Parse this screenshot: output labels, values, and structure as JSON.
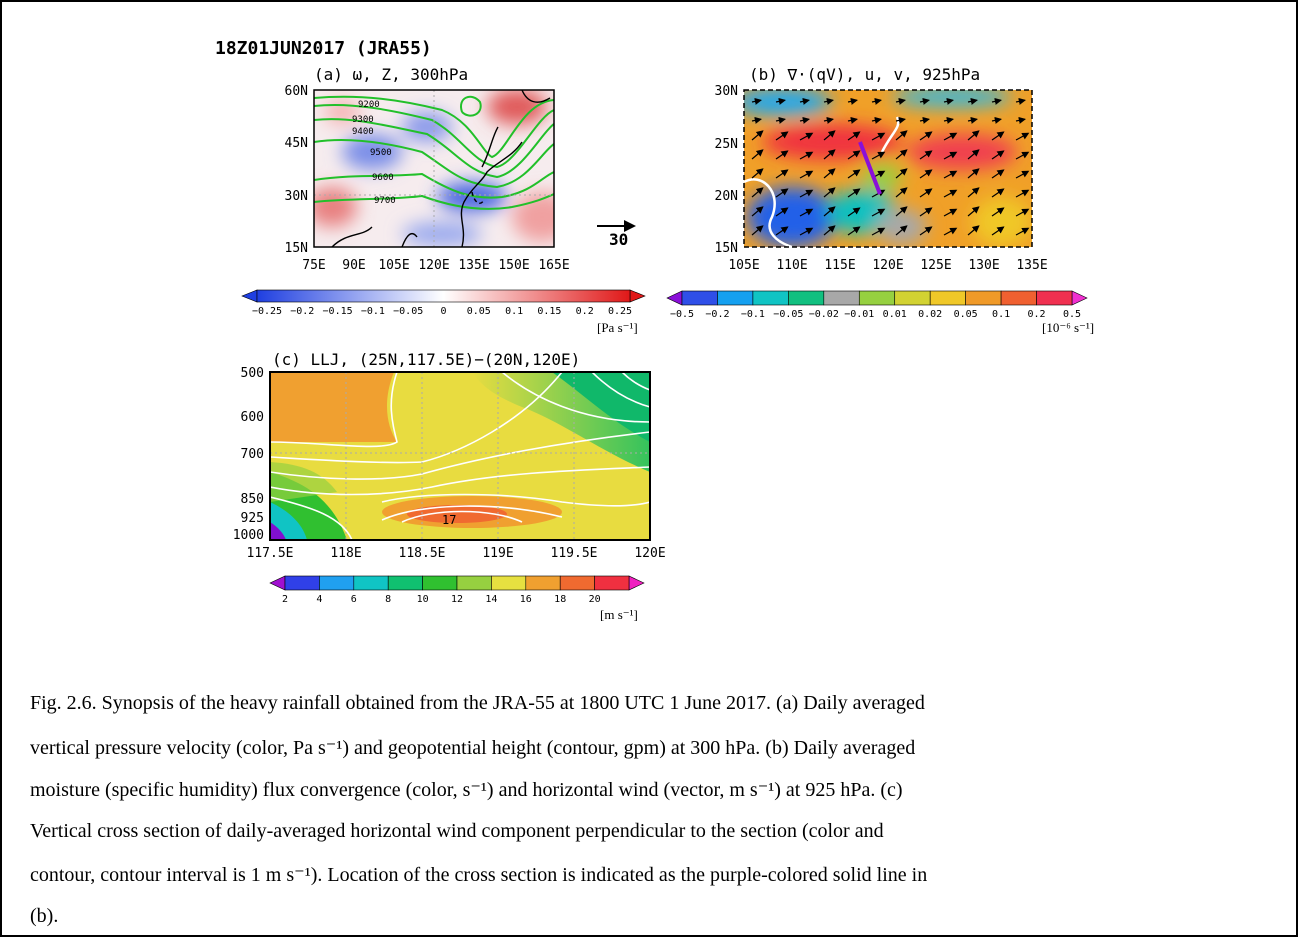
{
  "figure": {
    "title": "18Z01JUN2017 (JRA55)",
    "panels": [
      {
        "title": "(a) ω, Z, 300hPa",
        "yticks": [
          "60N",
          "45N",
          "30N",
          "15N"
        ],
        "xticks": [
          "75E",
          "90E",
          "105E",
          "120E",
          "135E",
          "150E",
          "165E"
        ],
        "contour_labels": [
          "9200",
          "9300",
          "9400",
          "9500",
          "9600",
          "9700"
        ],
        "vector_ref": "30",
        "colorbar_labels": [
          "−0.25",
          "−0.2",
          "−0.15",
          "−0.1",
          "−0.05",
          "0",
          "0.05",
          "0.1",
          "0.15",
          "0.2",
          "0.25"
        ],
        "colorbar_colors": [
          "#1f3fe0",
          "#ffffff",
          "#e01818"
        ],
        "colorbar_unit": "[Pa s⁻¹]"
      },
      {
        "title": "(b) ∇·(qV), u, v, 925hPa",
        "yticks": [
          "30N",
          "25N",
          "20N",
          "15N"
        ],
        "xticks": [
          "105E",
          "110E",
          "115E",
          "120E",
          "125E",
          "130E",
          "135E"
        ],
        "colorbar_labels": [
          "−0.5",
          "−0.2",
          "−0.1",
          "−0.05",
          "−0.02",
          "−0.01",
          "0.01",
          "0.02",
          "0.05",
          "0.1",
          "0.2",
          "0.5"
        ],
        "colorbar_colors": [
          "#8a10d8",
          "#2f4fe8",
          "#15a0f0",
          "#10c4c4",
          "#12c080",
          "#a8a8a8",
          "#96d040",
          "#d2d232",
          "#f0c828",
          "#f09a28",
          "#f06030",
          "#f03050",
          "#f030d0"
        ],
        "colorbar_unit": "[10⁻⁶ s⁻¹]"
      },
      {
        "title": "(c) LLJ, (25N,117.5E)−(20N,120E)",
        "yticks": [
          "500",
          "600",
          "700",
          "850",
          "925",
          "1000"
        ],
        "xticks": [
          "117.5E",
          "118E",
          "118.5E",
          "119E",
          "119.5E",
          "120E"
        ],
        "contour_labels": [
          "17"
        ],
        "colorbar_labels": [
          "2",
          "4",
          "6",
          "8",
          "10",
          "12",
          "14",
          "16",
          "18",
          "20"
        ],
        "colorbar_colors": [
          "#a010d0",
          "#3040e8",
          "#20a0f0",
          "#10c4c4",
          "#10c070",
          "#30c030",
          "#96d040",
          "#e6e040",
          "#f0a030",
          "#f06a30",
          "#f03040",
          "#f020c0"
        ],
        "colorbar_unit": "[m s⁻¹]"
      }
    ]
  },
  "caption": {
    "lines": [
      "Fig. 2.6. Synopsis of the heavy rainfall obtained from the JRA-55 at 1800 UTC 1 June 2017. (a) Daily averaged",
      "vertical pressure velocity (color, Pa s⁻¹) and geopotential height (contour, gpm) at 300 hPa. (b) Daily averaged",
      "moisture (specific humidity) flux convergence (color, s⁻¹) and horizontal wind (vector, m s⁻¹) at 925 hPa. (c)",
      "Vertical cross section of daily-averaged horizontal wind component perpendicular to the section (color and",
      "contour, contour interval is 1 m s⁻¹). Location of the cross section is indicated as the purple-colored solid line in",
      "(b)."
    ]
  }
}
